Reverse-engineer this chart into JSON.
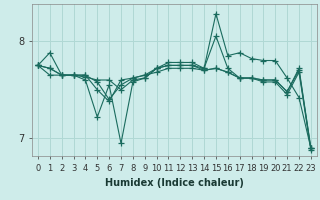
{
  "xlabel": "Humidex (Indice chaleur)",
  "ylabel": "",
  "xlim": [
    -0.5,
    23.5
  ],
  "ylim": [
    6.82,
    8.38
  ],
  "yticks": [
    7,
    8
  ],
  "xticks": [
    0,
    1,
    2,
    3,
    4,
    5,
    6,
    7,
    8,
    9,
    10,
    11,
    12,
    13,
    14,
    15,
    16,
    17,
    18,
    19,
    20,
    21,
    22,
    23
  ],
  "background_color": "#ceecea",
  "grid_color": "#b0d8d4",
  "line_color": "#1a6b5e",
  "series": [
    [
      7.75,
      7.88,
      7.65,
      7.65,
      7.63,
      7.6,
      7.6,
      7.5,
      7.6,
      7.62,
      7.72,
      7.75,
      7.75,
      7.75,
      7.72,
      8.05,
      7.72,
      7.62,
      7.62,
      7.6,
      7.6,
      7.48,
      7.72,
      6.9
    ],
    [
      7.75,
      7.72,
      7.65,
      7.65,
      7.65,
      7.58,
      7.4,
      7.55,
      7.62,
      7.65,
      7.72,
      7.75,
      7.75,
      7.75,
      7.7,
      7.72,
      7.68,
      7.62,
      7.62,
      7.6,
      7.6,
      7.48,
      7.7,
      6.9
    ],
    [
      7.75,
      7.72,
      7.65,
      7.65,
      7.6,
      7.22,
      7.55,
      6.95,
      7.58,
      7.62,
      7.72,
      7.78,
      7.78,
      7.78,
      7.72,
      8.28,
      7.85,
      7.88,
      7.82,
      7.8,
      7.8,
      7.62,
      7.42,
      6.9
    ],
    [
      7.75,
      7.65,
      7.65,
      7.65,
      7.65,
      7.5,
      7.38,
      7.6,
      7.62,
      7.65,
      7.68,
      7.72,
      7.72,
      7.72,
      7.7,
      7.72,
      7.68,
      7.62,
      7.62,
      7.58,
      7.58,
      7.45,
      7.68,
      6.88
    ]
  ],
  "marker": "+",
  "markersize": 4,
  "linewidth": 0.8,
  "tick_fontsize": 6,
  "xlabel_fontsize": 7
}
